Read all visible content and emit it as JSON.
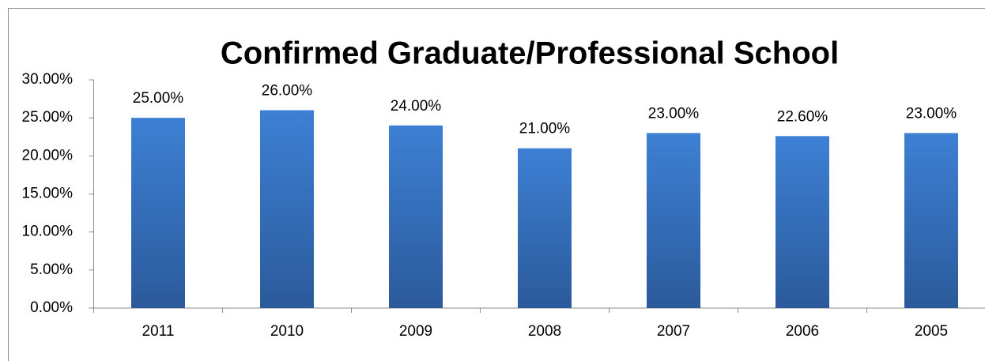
{
  "chart_data": {
    "type": "bar",
    "title": "Confirmed Graduate/Professional School",
    "categories": [
      "2011",
      "2010",
      "2009",
      "2008",
      "2007",
      "2006",
      "2005"
    ],
    "values": [
      25,
      26,
      24,
      21,
      23,
      22.6,
      23
    ],
    "value_labels": [
      "25.00%",
      "26.00%",
      "24.00%",
      "21.00%",
      "23.00%",
      "22.60%",
      "23.00%"
    ],
    "color": "#3a7bd0",
    "ylim": [
      0,
      30
    ],
    "yticks": [
      {
        "value": 0,
        "label": "0.00%"
      },
      {
        "value": 5,
        "label": "5.00%"
      },
      {
        "value": 10,
        "label": "10.00%"
      },
      {
        "value": 15,
        "label": "15.00%"
      },
      {
        "value": 20,
        "label": "20.00%"
      },
      {
        "value": 25,
        "label": "25.00%"
      },
      {
        "value": 30,
        "label": "30.00%"
      }
    ],
    "grid": false
  }
}
